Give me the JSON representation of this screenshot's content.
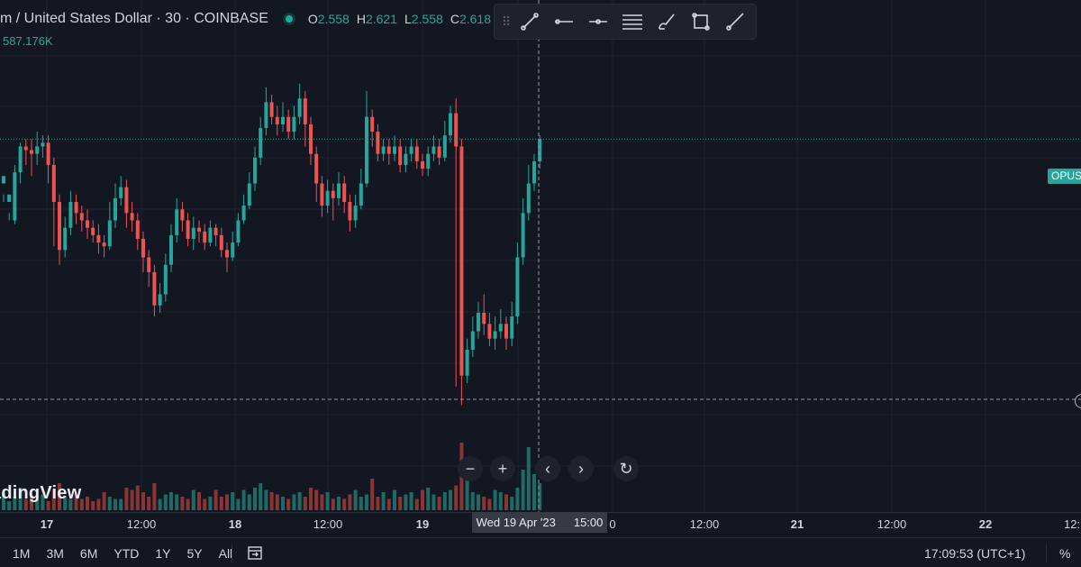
{
  "header": {
    "title": "m / United States Dollar · 30 · COINBASE",
    "ohlc": [
      {
        "k": "O",
        "v": "2.558"
      },
      {
        "k": "H",
        "v": "2.621"
      },
      {
        "k": "L",
        "v": "2.558"
      },
      {
        "k": "C",
        "v": "2.618"
      }
    ],
    "volume": "587.176K"
  },
  "toolbar": {
    "tools": [
      "trend-line-icon",
      "horizontal-line-icon",
      "horizontal-ray-icon",
      "fib-retracement-icon",
      "brush-icon",
      "rectangle-icon",
      "ray-icon"
    ]
  },
  "price_tag": "OPUS",
  "logo_text": "adingView",
  "nav": {
    "zoom_out": "−",
    "zoom_in": "+",
    "scroll_left": "‹",
    "scroll_right": "›",
    "reset": "↻"
  },
  "x_axis": {
    "labels": [
      {
        "text": "17",
        "bold": true
      },
      {
        "text": "12:00",
        "bold": false
      },
      {
        "text": "18",
        "bold": true
      },
      {
        "text": "12:00",
        "bold": false
      },
      {
        "text": "19",
        "bold": true
      },
      {
        "text": "0",
        "bold": false
      },
      {
        "text": "12:00",
        "bold": false
      },
      {
        "text": "21",
        "bold": true
      },
      {
        "text": "12:00",
        "bold": false
      },
      {
        "text": "22",
        "bold": true
      },
      {
        "text": "12:",
        "bold": false
      }
    ],
    "crosshair_date": "Wed 19 Apr '23",
    "crosshair_time": "15:00"
  },
  "bottom": {
    "ranges": [
      "1M",
      "3M",
      "6M",
      "YTD",
      "1Y",
      "5Y",
      "All"
    ],
    "clock": "17:09:53 (UTC+1)",
    "percent": "%"
  },
  "colors": {
    "up": "#26a69a",
    "down": "#ef5350",
    "bg": "#131722",
    "grid": "#1f2331"
  },
  "chart_data": {
    "type": "candlestick",
    "candles": [
      [
        2.5,
        2.52,
        2.47,
        2.45
      ],
      [
        2.45,
        2.47,
        2.42,
        2.4
      ],
      [
        2.4,
        2.53,
        2.55,
        2.39
      ],
      [
        2.53,
        2.6,
        2.61,
        2.5
      ],
      [
        2.6,
        2.59,
        2.62,
        2.55
      ],
      [
        2.59,
        2.58,
        2.62,
        2.52
      ],
      [
        2.58,
        2.6,
        2.64,
        2.55
      ],
      [
        2.6,
        2.61,
        2.63,
        2.57
      ],
      [
        2.61,
        2.55,
        2.63,
        2.5
      ],
      [
        2.55,
        2.45,
        2.57,
        2.33
      ],
      [
        2.45,
        2.32,
        2.47,
        2.28
      ],
      [
        2.32,
        2.38,
        2.41,
        2.3
      ],
      [
        2.38,
        2.45,
        2.48,
        2.36
      ],
      [
        2.45,
        2.42,
        2.47,
        2.39
      ],
      [
        2.42,
        2.4,
        2.44,
        2.37
      ],
      [
        2.4,
        2.38,
        2.43,
        2.35
      ],
      [
        2.38,
        2.36,
        2.4,
        2.34
      ],
      [
        2.36,
        2.34,
        2.39,
        2.31
      ],
      [
        2.34,
        2.33,
        2.36,
        2.3
      ],
      [
        2.33,
        2.4,
        2.45,
        2.32
      ],
      [
        2.4,
        2.46,
        2.5,
        2.38
      ],
      [
        2.46,
        2.49,
        2.52,
        2.44
      ],
      [
        2.49,
        2.42,
        2.51,
        2.38
      ],
      [
        2.42,
        2.4,
        2.45,
        2.37
      ],
      [
        2.4,
        2.35,
        2.42,
        2.32
      ],
      [
        2.35,
        2.3,
        2.37,
        2.26
      ],
      [
        2.3,
        2.26,
        2.32,
        2.22
      ],
      [
        2.26,
        2.17,
        2.28,
        2.14
      ],
      [
        2.17,
        2.2,
        2.23,
        2.15
      ],
      [
        2.2,
        2.28,
        2.31,
        2.18
      ],
      [
        2.28,
        2.36,
        2.39,
        2.26
      ],
      [
        2.36,
        2.43,
        2.46,
        2.34
      ],
      [
        2.43,
        2.4,
        2.45,
        2.37
      ],
      [
        2.4,
        2.35,
        2.42,
        2.33
      ],
      [
        2.35,
        2.38,
        2.41,
        2.32
      ],
      [
        2.38,
        2.37,
        2.4,
        2.34
      ],
      [
        2.37,
        2.34,
        2.39,
        2.32
      ],
      [
        2.34,
        2.38,
        2.4,
        2.33
      ],
      [
        2.38,
        2.36,
        2.39,
        2.33
      ],
      [
        2.36,
        2.32,
        2.38,
        2.3
      ],
      [
        2.32,
        2.3,
        2.34,
        2.26
      ],
      [
        2.3,
        2.34,
        2.37,
        2.29
      ],
      [
        2.34,
        2.4,
        2.42,
        2.33
      ],
      [
        2.4,
        2.44,
        2.47,
        2.39
      ],
      [
        2.44,
        2.5,
        2.53,
        2.43
      ],
      [
        2.5,
        2.57,
        2.6,
        2.48
      ],
      [
        2.57,
        2.65,
        2.68,
        2.55
      ],
      [
        2.65,
        2.72,
        2.76,
        2.63
      ],
      [
        2.72,
        2.68,
        2.74,
        2.66
      ],
      [
        2.68,
        2.66,
        2.71,
        2.63
      ],
      [
        2.66,
        2.68,
        2.72,
        2.64
      ],
      [
        2.68,
        2.64,
        2.7,
        2.62
      ],
      [
        2.64,
        2.68,
        2.71,
        2.62
      ],
      [
        2.68,
        2.73,
        2.77,
        2.66
      ],
      [
        2.73,
        2.66,
        2.75,
        2.6
      ],
      [
        2.66,
        2.58,
        2.68,
        2.55
      ],
      [
        2.58,
        2.5,
        2.6,
        2.45
      ],
      [
        2.5,
        2.44,
        2.52,
        2.41
      ],
      [
        2.44,
        2.48,
        2.51,
        2.42
      ],
      [
        2.48,
        2.46,
        2.5,
        2.4
      ],
      [
        2.46,
        2.5,
        2.53,
        2.44
      ],
      [
        2.5,
        2.45,
        2.52,
        2.42
      ],
      [
        2.45,
        2.4,
        2.47,
        2.37
      ],
      [
        2.4,
        2.44,
        2.47,
        2.38
      ],
      [
        2.44,
        2.5,
        2.54,
        2.43
      ],
      [
        2.5,
        2.68,
        2.75,
        2.49
      ],
      [
        2.68,
        2.64,
        2.7,
        2.6
      ],
      [
        2.64,
        2.58,
        2.66,
        2.56
      ],
      [
        2.58,
        2.6,
        2.62,
        2.56
      ],
      [
        2.6,
        2.58,
        2.62,
        2.55
      ],
      [
        2.58,
        2.6,
        2.63,
        2.56
      ],
      [
        2.6,
        2.55,
        2.62,
        2.53
      ],
      [
        2.55,
        2.58,
        2.6,
        2.53
      ],
      [
        2.58,
        2.6,
        2.62,
        2.56
      ],
      [
        2.6,
        2.56,
        2.62,
        2.54
      ],
      [
        2.56,
        2.54,
        2.58,
        2.52
      ],
      [
        2.54,
        2.58,
        2.6,
        2.52
      ],
      [
        2.58,
        2.6,
        2.63,
        2.56
      ],
      [
        2.6,
        2.57,
        2.62,
        2.55
      ],
      [
        2.57,
        2.63,
        2.67,
        2.56
      ],
      [
        2.63,
        2.69,
        2.71,
        2.61
      ],
      [
        2.69,
        2.6,
        2.73,
        1.95
      ],
      [
        2.6,
        1.98,
        2.62,
        1.9
      ],
      [
        1.98,
        2.05,
        2.08,
        1.96
      ],
      [
        2.05,
        2.1,
        2.14,
        2.03
      ],
      [
        2.1,
        2.15,
        2.18,
        2.08
      ],
      [
        2.15,
        2.12,
        2.2,
        2.09
      ],
      [
        2.12,
        2.08,
        2.15,
        2.06
      ],
      [
        2.08,
        2.1,
        2.14,
        2.05
      ],
      [
        2.1,
        2.12,
        2.16,
        2.08
      ],
      [
        2.12,
        2.08,
        2.14,
        2.05
      ],
      [
        2.08,
        2.14,
        2.18,
        2.06
      ],
      [
        2.14,
        2.3,
        2.34,
        2.12
      ],
      [
        2.3,
        2.42,
        2.46,
        2.28
      ],
      [
        2.42,
        2.5,
        2.55,
        2.4
      ],
      [
        2.5,
        2.56,
        2.58,
        2.48
      ],
      [
        2.56,
        2.62,
        2.63,
        2.54
      ]
    ],
    "volumes": [
      8,
      4,
      6,
      10,
      5,
      6,
      5,
      7,
      4,
      9,
      12,
      6,
      5,
      7,
      5,
      6,
      4,
      5,
      8,
      6,
      5,
      5,
      10,
      9,
      11,
      8,
      6,
      12,
      5,
      7,
      8,
      7,
      6,
      5,
      9,
      8,
      5,
      6,
      9,
      6,
      7,
      8,
      5,
      9,
      7,
      10,
      12,
      9,
      8,
      7,
      6,
      5,
      7,
      8,
      6,
      10,
      9,
      7,
      8,
      5,
      6,
      5,
      7,
      9,
      6,
      7,
      14,
      6,
      8,
      5,
      9,
      6,
      7,
      8,
      5,
      9,
      10,
      7,
      6,
      8,
      9,
      11,
      30,
      14,
      8,
      7,
      6,
      5,
      9,
      8,
      7,
      6,
      10,
      18,
      28,
      16,
      12
    ],
    "ylim": [
      1.85,
      2.85
    ]
  }
}
